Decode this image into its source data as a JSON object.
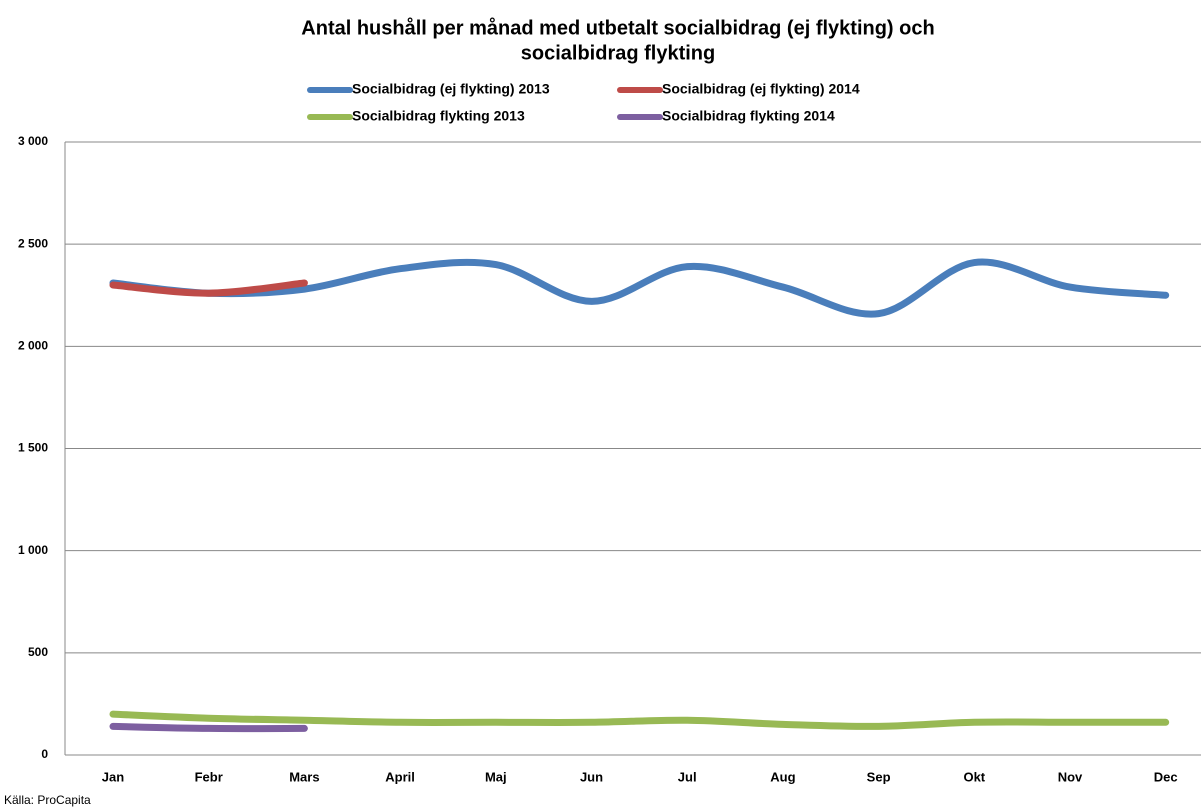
{
  "chart_data": {
    "type": "line",
    "title": "Antal hushåll per månad med utbetalt socialbidrag (ej flykting) och socialbidrag flykting",
    "source": "Källa: ProCapita",
    "categories": [
      "Jan",
      "Febr",
      "Mars",
      "April",
      "Maj",
      "Jun",
      "Jul",
      "Aug",
      "Sep",
      "Okt",
      "Nov",
      "Dec"
    ],
    "series": [
      {
        "name": "Socialbidrag (ej flykting) 2013",
        "color": "#4a7ebb",
        "values": [
          2310,
          2260,
          2280,
          2380,
          2400,
          2220,
          2390,
          2290,
          2160,
          2410,
          2290,
          2250
        ]
      },
      {
        "name": "Socialbidrag (ej flykting) 2014",
        "color": "#be4b48",
        "values": [
          2300,
          2260,
          2310,
          null,
          null,
          null,
          null,
          null,
          null,
          null,
          null,
          null
        ]
      },
      {
        "name": "Socialbidrag flykting 2013",
        "color": "#98b954",
        "values": [
          200,
          180,
          170,
          160,
          160,
          160,
          170,
          150,
          140,
          160,
          160,
          160
        ]
      },
      {
        "name": "Socialbidrag flykting 2014",
        "color": "#7d5fa0",
        "values": [
          140,
          130,
          130,
          null,
          null,
          null,
          null,
          null,
          null,
          null,
          null,
          null
        ]
      }
    ],
    "ylim": [
      0,
      3000
    ],
    "yticks": [
      0,
      500,
      {
        "value": 1000,
        "label": "1 000"
      },
      {
        "value": 1500,
        "label": "1 500"
      },
      {
        "value": 2000,
        "label": "2 000"
      },
      {
        "value": 2500,
        "label": "2 500"
      },
      {
        "value": 3000,
        "label": "3 000"
      }
    ],
    "grid": true
  }
}
